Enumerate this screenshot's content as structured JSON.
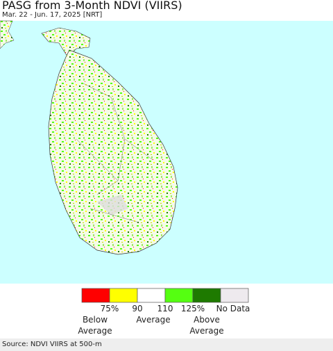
{
  "header": {
    "title": "PASG from 3-Month NDVI (VIIRS)",
    "subtitle": "Mar. 22 - Jun. 17, 2025 [NRT]"
  },
  "legend": {
    "colors": [
      "#ff0000",
      "#ffff00",
      "#ffffff",
      "#55ff11",
      "#1e7a00",
      "#eeeaee"
    ],
    "ticks": [
      "75%",
      "90",
      "110",
      "125%",
      "No Data"
    ],
    "descriptions": [
      [
        "Below",
        "Average"
      ],
      [
        "Average"
      ],
      [
        "Above",
        "Average"
      ]
    ]
  },
  "footer": {
    "source": "Source: NDVI VIIRS at 500-m"
  }
}
